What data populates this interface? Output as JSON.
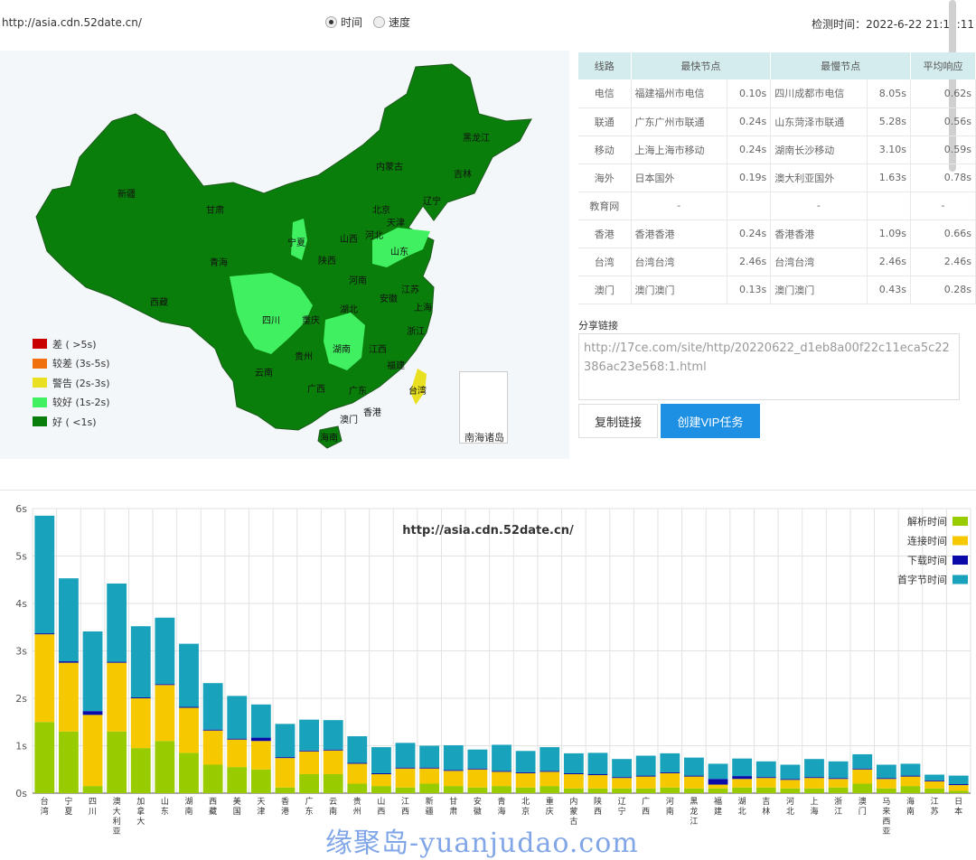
{
  "header": {
    "url": "http://asia.cdn.52date.cn/",
    "radio_time": "时间",
    "radio_speed": "速度",
    "check_time": "检测时间：2022-6-22 21:12:11"
  },
  "map": {
    "legend": [
      {
        "label": "差 ( >5s)",
        "color": "#c80000"
      },
      {
        "label": "较差 (3s-5s)",
        "color": "#f07010"
      },
      {
        "label": "警告 (2s-3s)",
        "color": "#e8e020"
      },
      {
        "label": "较好 (1s-2s)",
        "color": "#40f060"
      },
      {
        "label": "好 ( <1s)",
        "color": "#0a7e0a"
      }
    ],
    "provinces": [
      "黑龙江",
      "吉林",
      "辽宁",
      "内蒙古",
      "新疆",
      "甘肃",
      "青海",
      "西藏",
      "宁夏",
      "山西",
      "河北",
      "北京",
      "天津",
      "山东",
      "陕西",
      "河南",
      "江苏",
      "上海",
      "安徽",
      "湖北",
      "四川",
      "重庆",
      "湖南",
      "江西",
      "浙江",
      "贵州",
      "福建",
      "云南",
      "广西",
      "广东",
      "台湾",
      "香港",
      "澳门",
      "海南"
    ],
    "south_sea_label": "南海诸岛"
  },
  "table": {
    "headers": [
      "线路",
      "最快节点",
      "最慢节点",
      "平均响应"
    ],
    "rows": [
      {
        "line": "电信",
        "fast": "福建福州市电信",
        "fast_t": "0.10s",
        "slow": "四川成都市电信",
        "slow_t": "8.05s",
        "avg": "0.62s"
      },
      {
        "line": "联通",
        "fast": "广东广州市联通",
        "fast_t": "0.24s",
        "slow": "山东菏泽市联通",
        "slow_t": "5.28s",
        "avg": "0.56s"
      },
      {
        "line": "移动",
        "fast": "上海上海市移动",
        "fast_t": "0.24s",
        "slow": "湖南长沙移动",
        "slow_t": "3.10s",
        "avg": "0.59s"
      },
      {
        "line": "海外",
        "fast": "日本国外",
        "fast_t": "0.19s",
        "slow": "澳大利亚国外",
        "slow_t": "1.63s",
        "avg": "0.78s"
      },
      {
        "line": "教育网",
        "fast": "-",
        "fast_t": "",
        "slow": "-",
        "slow_t": "",
        "avg": "-"
      },
      {
        "line": "香港",
        "fast": "香港香港",
        "fast_t": "0.24s",
        "slow": "香港香港",
        "slow_t": "1.09s",
        "avg": "0.66s"
      },
      {
        "line": "台湾",
        "fast": "台湾台湾",
        "fast_t": "2.46s",
        "slow": "台湾台湾",
        "slow_t": "2.46s",
        "avg": "2.46s"
      },
      {
        "line": "澳门",
        "fast": "澳门澳门",
        "fast_t": "0.13s",
        "slow": "澳门澳门",
        "slow_t": "0.43s",
        "avg": "0.28s"
      }
    ]
  },
  "share": {
    "label": "分享链接",
    "link": "http://17ce.com/site/http/20220622_d1eb8a00f22c11eca5c22386ac23e568:1.html",
    "copy_button": "复制链接",
    "vip_button": "创建VIP任务"
  },
  "chart_data": {
    "type": "bar",
    "stacked": true,
    "title": "http://asia.cdn.52date.cn/",
    "ylim": [
      0,
      6
    ],
    "yticks": [
      "0s",
      "1s",
      "2s",
      "3s",
      "4s",
      "5s",
      "6s"
    ],
    "legend_position": "top-right",
    "grid": true,
    "categories": [
      "台湾",
      "宁夏",
      "四川",
      "澳大利亚",
      "加拿大",
      "山东",
      "湖南",
      "西藏",
      "美国",
      "天津",
      "香港",
      "广东",
      "云南",
      "贵州",
      "山西",
      "江西",
      "新疆",
      "甘肃",
      "安徽",
      "青海",
      "北京",
      "重庆",
      "内蒙古",
      "陕西",
      "辽宁",
      "广西",
      "河南",
      "黑龙江",
      "福建",
      "湖北",
      "吉林",
      "河北",
      "上海",
      "浙江",
      "澳门",
      "马来西亚",
      "海南",
      "江苏",
      "日本"
    ],
    "series": [
      {
        "name": "解析时间",
        "color": "#99cc00",
        "values": [
          1.5,
          1.3,
          0.15,
          1.3,
          0.95,
          1.1,
          0.85,
          0.6,
          0.55,
          0.5,
          0.12,
          0.4,
          0.4,
          0.2,
          0.15,
          0.12,
          0.2,
          0.15,
          0.12,
          0.15,
          0.12,
          0.15,
          0.1,
          0.1,
          0.1,
          0.1,
          0.12,
          0.1,
          0.1,
          0.12,
          0.12,
          0.1,
          0.1,
          0.12,
          0.2,
          0.1,
          0.15,
          0.1,
          0.05
        ]
      },
      {
        "name": "连接时间",
        "color": "#f5c800",
        "values": [
          1.85,
          1.45,
          1.5,
          1.45,
          1.05,
          1.18,
          0.95,
          0.72,
          0.58,
          0.6,
          0.62,
          0.48,
          0.5,
          0.42,
          0.25,
          0.4,
          0.32,
          0.32,
          0.38,
          0.3,
          0.3,
          0.3,
          0.3,
          0.28,
          0.22,
          0.25,
          0.3,
          0.25,
          0.08,
          0.18,
          0.2,
          0.18,
          0.22,
          0.18,
          0.3,
          0.2,
          0.2,
          0.15,
          0.12
        ]
      },
      {
        "name": "下载时间",
        "color": "#0a0aa8",
        "values": [
          0.02,
          0.03,
          0.08,
          0.02,
          0.02,
          0.02,
          0.02,
          0.02,
          0.02,
          0.07,
          0.02,
          0.02,
          0.02,
          0.02,
          0.02,
          0.02,
          0.02,
          0.02,
          0.02,
          0.02,
          0.02,
          0.02,
          0.02,
          0.02,
          0.02,
          0.02,
          0.02,
          0.02,
          0.12,
          0.06,
          0.02,
          0.02,
          0.02,
          0.02,
          0.02,
          0.02,
          0.02,
          0.02,
          0.02
        ]
      },
      {
        "name": "首字节时间",
        "color": "#18a2bc",
        "values": [
          2.48,
          1.75,
          1.68,
          1.65,
          1.5,
          1.4,
          1.33,
          0.98,
          0.9,
          0.7,
          0.7,
          0.65,
          0.62,
          0.56,
          0.55,
          0.52,
          0.46,
          0.52,
          0.4,
          0.55,
          0.45,
          0.5,
          0.42,
          0.45,
          0.38,
          0.42,
          0.4,
          0.38,
          0.32,
          0.37,
          0.33,
          0.3,
          0.38,
          0.35,
          0.3,
          0.28,
          0.25,
          0.12,
          0.18
        ]
      }
    ]
  },
  "watermark": "缘聚岛-yuanjudao.com"
}
